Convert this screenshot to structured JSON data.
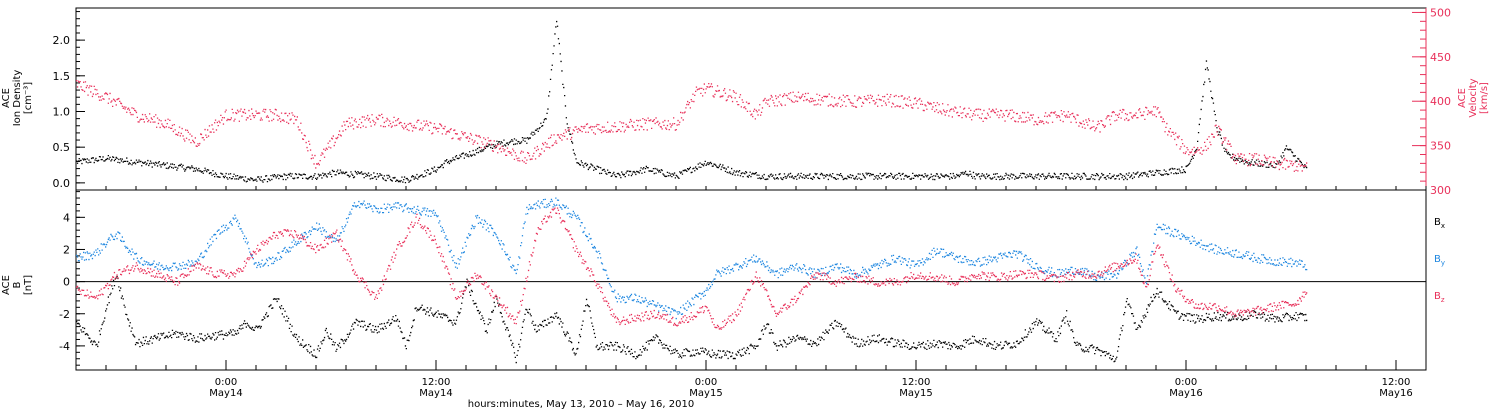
{
  "chart_data": [
    {
      "type": "scatter",
      "ylabel_lines": [
        "ACE",
        "Ion Density",
        "[cm⁻³]"
      ],
      "ylim": [
        -0.1,
        2.45
      ],
      "yticks": [
        "0.0",
        "0.5",
        "1.0",
        "1.5",
        "2.0"
      ],
      "ytick_values": [
        0,
        0.5,
        1.0,
        1.5,
        2.0
      ],
      "right_axis": {
        "ylabel_lines": [
          "ACE",
          "Velocity",
          "[km/s]"
        ],
        "ylim": [
          300,
          505
        ],
        "yticks": [
          "300",
          "350",
          "400",
          "450",
          "500"
        ],
        "ytick_values": [
          300,
          350,
          400,
          450,
          500
        ],
        "color": "#e8305a"
      },
      "series": [
        {
          "color": "#000000",
          "axis": "left",
          "x_hours": [
            0,
            3,
            6,
            9,
            12,
            15,
            18,
            21,
            22,
            24,
            26,
            30,
            33,
            36,
            37,
            39,
            42,
            44,
            45,
            47,
            48,
            49,
            50,
            52,
            54,
            57,
            60,
            63,
            66,
            69,
            72,
            75,
            78,
            81,
            84,
            86,
            88,
            89,
            90,
            93,
            96,
            99,
            102,
            105,
            108,
            111,
            112,
            113,
            114,
            115,
            117,
            120,
            121,
            123
          ],
          "values": [
            0.3,
            0.35,
            0.3,
            0.25,
            0.2,
            0.1,
            0.05,
            0.1,
            0.1,
            0.1,
            0.15,
            0.1,
            0.05,
            0.2,
            0.3,
            0.4,
            0.55,
            0.6,
            0.6,
            0.9,
            2.3,
            0.9,
            0.3,
            0.2,
            0.1,
            0.2,
            0.1,
            0.3,
            0.15,
            0.1,
            0.1,
            0.1,
            0.1,
            0.1,
            0.1,
            0.1,
            0.1,
            0.15,
            0.1,
            0.1,
            0.1,
            0.1,
            0.1,
            0.1,
            0.15,
            0.2,
            0.5,
            1.7,
            0.8,
            0.4,
            0.3,
            0.25,
            0.5,
            0.2
          ]
        },
        {
          "color": "#e8305a",
          "axis": "right",
          "x_hours": [
            0,
            3,
            6,
            9,
            12,
            15,
            18,
            20,
            22,
            24,
            27,
            30,
            33,
            36,
            39,
            42,
            45,
            48,
            51,
            54,
            57,
            60,
            62,
            63,
            66,
            68,
            69,
            72,
            75,
            78,
            81,
            84,
            87,
            90,
            93,
            96,
            99,
            100,
            102,
            104,
            106,
            108,
            109,
            111,
            112,
            113,
            114,
            116,
            118,
            120,
            122,
            123
          ],
          "values": [
            420,
            405,
            385,
            375,
            355,
            385,
            385,
            385,
            380,
            330,
            375,
            380,
            375,
            370,
            360,
            350,
            335,
            360,
            370,
            372,
            375,
            375,
            410,
            415,
            405,
            385,
            400,
            405,
            402,
            400,
            402,
            398,
            390,
            385,
            385,
            380,
            385,
            380,
            370,
            385,
            385,
            390,
            370,
            345,
            345,
            350,
            370,
            335,
            335,
            330,
            328,
            325
          ]
        }
      ]
    },
    {
      "type": "scatter",
      "ylabel_lines": [
        "ACE",
        "B",
        "[nT]"
      ],
      "ylim": [
        -5.5,
        5.7
      ],
      "yticks": [
        "-4",
        "-2",
        "0",
        "2",
        "4"
      ],
      "ytick_values": [
        -4,
        -2,
        0,
        2,
        4
      ],
      "series": [
        {
          "name": "Bx",
          "label_main": "B",
          "label_sub": "x",
          "color": "#000000",
          "x_hours": [
            0,
            2,
            3,
            4,
            5,
            6,
            8,
            10,
            12,
            14,
            16,
            17,
            18,
            20,
            22,
            24,
            25,
            26,
            28,
            30,
            32,
            33,
            34,
            36,
            38,
            39,
            41,
            42,
            44,
            45,
            46,
            48,
            50,
            51,
            52,
            54,
            56,
            58,
            60,
            62,
            64,
            66,
            68,
            69,
            70,
            72,
            74,
            76,
            78,
            80,
            82,
            84,
            86,
            88,
            90,
            92,
            94,
            96,
            98,
            99,
            100,
            102,
            104,
            105,
            106,
            108,
            110,
            112,
            114,
            116,
            118,
            120,
            122,
            123
          ],
          "values": [
            -2.5,
            -4,
            -1.5,
            0.5,
            -2,
            -3.8,
            -3.5,
            -3.2,
            -3.5,
            -3.3,
            -3.2,
            -2.5,
            -3,
            -1,
            -3.5,
            -4.5,
            -3,
            -4.2,
            -2.5,
            -3,
            -2.2,
            -4,
            -1.5,
            -2,
            -2.5,
            0,
            -3,
            -1,
            -4.8,
            -1.5,
            -3,
            -2,
            -4.5,
            -1,
            -4,
            -4,
            -4.5,
            -3.5,
            -4.5,
            -4.3,
            -4.5,
            -4.5,
            -4,
            -2.5,
            -4,
            -3.5,
            -3.8,
            -2.5,
            -3.8,
            -3.5,
            -3.8,
            -4,
            -3.8,
            -4,
            -3.5,
            -4,
            -3.8,
            -2.5,
            -3.5,
            -2,
            -4,
            -4.2,
            -4.8,
            -1,
            -3,
            -0.5,
            -2,
            -2.3,
            -2.1,
            -2.2,
            -2,
            -2.3,
            -2.1,
            -2.2
          ]
        },
        {
          "name": "By",
          "label_main": "B",
          "label_sub": "y",
          "color": "#1f87e0",
          "x_hours": [
            0,
            2,
            3,
            4,
            6,
            8,
            10,
            12,
            14,
            15,
            16,
            18,
            20,
            22,
            24,
            26,
            28,
            30,
            32,
            34,
            36,
            38,
            40,
            42,
            44,
            45,
            46,
            48,
            50,
            51,
            52,
            54,
            56,
            58,
            60,
            62,
            63,
            64,
            66,
            68,
            70,
            72,
            74,
            76,
            78,
            80,
            82,
            84,
            86,
            88,
            90,
            92,
            94,
            96,
            98,
            100,
            102,
            104,
            106,
            107,
            108,
            110,
            112,
            114,
            116,
            118,
            120,
            122,
            123
          ],
          "values": [
            1.5,
            1.8,
            2.5,
            3,
            1.5,
            1,
            1,
            1.2,
            3,
            3.5,
            4,
            1,
            1.5,
            2.5,
            3.5,
            2.5,
            5,
            4.5,
            4.7,
            4.5,
            4.2,
            1,
            4,
            3,
            0.5,
            4.5,
            4.8,
            5,
            4,
            3,
            2,
            -1,
            -1,
            -1.5,
            -2,
            -1,
            -0.5,
            0.5,
            1,
            1.5,
            0.5,
            1,
            0.5,
            1,
            0.5,
            1,
            1.5,
            1,
            2,
            1.5,
            1.2,
            1.5,
            1.8,
            1,
            0.5,
            0.8,
            0.3,
            0.5,
            2,
            0,
            3.5,
            3,
            2.5,
            2,
            1.8,
            1.5,
            1.3,
            1.2,
            1
          ]
        },
        {
          "name": "Bz",
          "label_main": "B",
          "label_sub": "z",
          "color": "#e8305a",
          "x_hours": [
            0,
            2,
            4,
            6,
            8,
            10,
            12,
            14,
            16,
            18,
            20,
            22,
            24,
            26,
            28,
            30,
            32,
            33,
            34,
            36,
            38,
            40,
            42,
            44,
            46,
            47,
            48,
            50,
            52,
            54,
            56,
            58,
            60,
            62,
            63,
            64,
            66,
            68,
            70,
            72,
            74,
            76,
            78,
            80,
            82,
            84,
            86,
            88,
            90,
            92,
            94,
            96,
            98,
            100,
            102,
            104,
            106,
            107,
            108,
            110,
            112,
            114,
            116,
            118,
            120,
            122,
            123
          ],
          "values": [
            -0.5,
            -1,
            0.5,
            1,
            0.5,
            0,
            1,
            0.5,
            0.5,
            2,
            3,
            3,
            2,
            3,
            0.5,
            -1,
            2,
            3,
            4,
            2.5,
            -1,
            0.5,
            -1,
            -2.5,
            3,
            4,
            4.5,
            2,
            0,
            -2.5,
            -2.2,
            -2,
            -2.5,
            -2,
            -1.5,
            -3,
            -2,
            0.5,
            -2,
            -1,
            0.5,
            0,
            0.3,
            0,
            0,
            0.5,
            0.3,
            0,
            0.5,
            0.3,
            0.5,
            0.5,
            0.2,
            0.5,
            0.5,
            1,
            1.5,
            -0.5,
            2.5,
            -0.5,
            -1.5,
            -1.5,
            -2,
            -1.8,
            -1.5,
            -1.3,
            -0.5
          ]
        }
      ]
    }
  ],
  "x_axis": {
    "xlim_hours": [
      0,
      135
    ],
    "tick_hours": [
      0,
      3,
      6,
      9,
      12,
      15,
      18,
      21,
      24,
      27,
      30,
      33,
      36,
      39,
      42,
      45,
      48,
      51,
      54,
      57,
      60,
      63,
      66,
      69,
      72,
      75,
      78,
      81,
      84,
      87,
      90,
      93,
      96,
      99,
      102,
      105,
      108,
      111,
      114,
      117,
      120,
      123,
      126,
      129,
      132,
      135
    ],
    "major_ticks": [
      {
        "hours": 15,
        "time": "0:00",
        "date": "May14"
      },
      {
        "hours": 36,
        "time": "12:00",
        "date": "May14"
      },
      {
        "hours": 63,
        "time": "0:00",
        "date": "May15"
      },
      {
        "hours": 84,
        "time": "12:00",
        "date": "May15"
      },
      {
        "hours": 111,
        "time": "0:00",
        "date": "May16"
      },
      {
        "hours": 132,
        "time": "12:00",
        "date": "May16"
      }
    ],
    "title": "hours:minutes, May 13, 2010 – May 16, 2010"
  }
}
